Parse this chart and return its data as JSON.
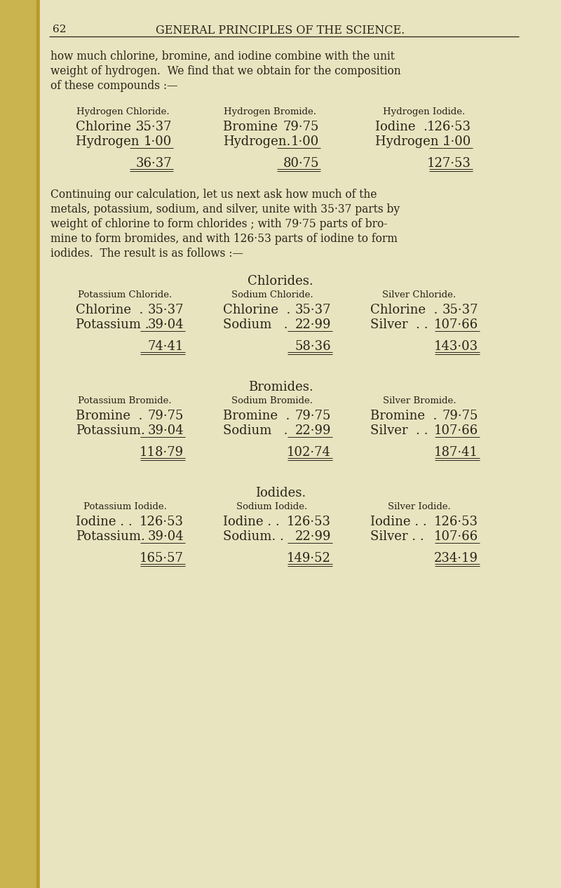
{
  "bg_color": "#e8e4c0",
  "page_bg": "#ddd9b5",
  "spine_color": "#c8a830",
  "text_color": "#2a2318",
  "page_number": "62",
  "page_title": "GENERAL PRINCIPLES OF THE SCIENCE.",
  "intro_text": [
    "how much chlorine, bromine, and iodine combine with the unit",
    "weight of hydrogen.  We find that we obtain for the composition",
    "of these compounds :—"
  ],
  "continuing_text": [
    "Continuing our calculation, let us next ask how much of the",
    "metals, potassium, sodium, and silver, unite with 35·37 parts by",
    "weight of chlorine to form chlorides ; with 79·75 parts of bro-",
    "mine to form bromides, and with 126·53 parts of iodine to form",
    "iodides.  The result is as follows :—"
  ],
  "section1_header": "Chlorides.",
  "section2_header": "Bromides.",
  "section3_header": "Iodides.",
  "hydrogen_compounds": [
    {
      "title": "Hydrogen Chloride.",
      "row1_label": "Chlorine . .",
      "row1_value": "35·37",
      "row2_label": "Hydrogen  .",
      "row2_value": "1·00",
      "total": "36·37"
    },
    {
      "title": "Hydrogen Bromide.",
      "row1_label": "Bromine  .",
      "row1_value": "79·75",
      "row2_label": "Hydrogen.",
      "row2_value": "1·00",
      "total": "80·75"
    },
    {
      "title": "Hydrogen Iodide.",
      "row1_label": "Iodine  .",
      "row1_value": "126·53",
      "row2_label": "Hydrogen .",
      "row2_value": "1·00",
      "total": "127·53"
    }
  ],
  "chlorides": [
    {
      "title": "Potassium Chloride.",
      "row1_label": "Chlorine  .",
      "row1_value": "35·37",
      "row2_label": "Potassium .",
      "row2_value": "39·04",
      "total": "74·41"
    },
    {
      "title": "Sodium Chloride.",
      "row1_label": "Chlorine  .",
      "row1_value": "35·37",
      "row2_label": "Sodium   .",
      "row2_value": "22·99",
      "total": "58·36"
    },
    {
      "title": "Silver Chloride.",
      "row1_label": "Chlorine  .",
      "row1_value": "35·37",
      "row2_label": "Silver  . .",
      "row2_value": "107·66",
      "total": "143·03"
    }
  ],
  "bromides": [
    {
      "title": "Potassium Bromide.",
      "row1_label": "Bromine  .",
      "row1_value": "79·75",
      "row2_label": "Potassium.",
      "row2_value": "39·04",
      "total": "118·79"
    },
    {
      "title": "Sodium Bromide.",
      "row1_label": "Bromine  .",
      "row1_value": "79·75",
      "row2_label": "Sodium   .",
      "row2_value": "22·99",
      "total": "102·74"
    },
    {
      "title": "Silver Bromide.",
      "row1_label": "Bromine  .",
      "row1_value": "79·75",
      "row2_label": "Silver  . .",
      "row2_value": "107·66",
      "total": "187·41"
    }
  ],
  "iodides": [
    {
      "title": "Potassium Iodide.",
      "row1_label": "Iodine . .",
      "row1_value": "126·53",
      "row2_label": "Potassium.",
      "row2_value": "39·04",
      "total": "165·57"
    },
    {
      "title": "Sodium Iodide.",
      "row1_label": "Iodine . .",
      "row1_value": "126·53",
      "row2_label": "Sodium. .",
      "row2_value": "22·99",
      "total": "149·52"
    },
    {
      "title": "Silver Iodide.",
      "row1_label": "Iodine . .",
      "row1_value": "126·53",
      "row2_label": "Silver . .",
      "row2_value": "107·66",
      "total": "234·19"
    }
  ]
}
